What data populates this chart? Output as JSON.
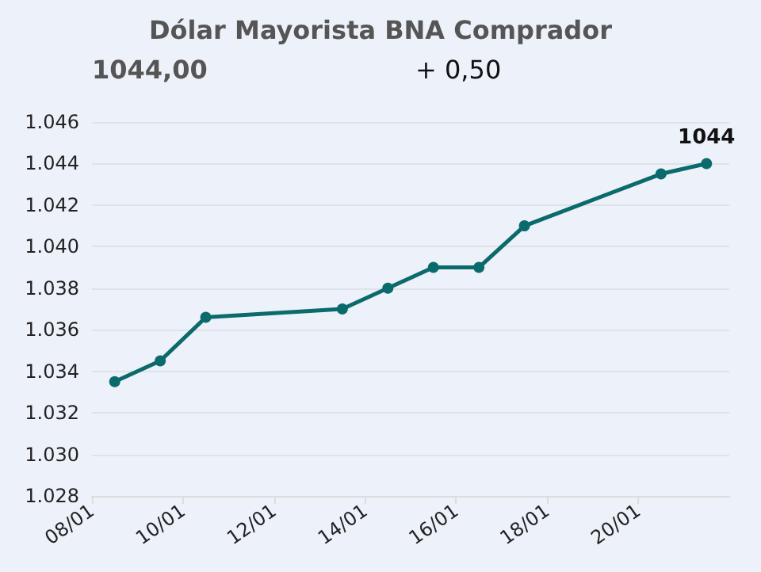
{
  "chart_data": {
    "type": "line",
    "title": "Dólar Mayorista BNA Comprador",
    "annotations": [
      "1044,00",
      "+ 0,50"
    ],
    "x": [
      "--01-08T12:00",
      "--01-09T12:00",
      "--01-10T12:00",
      "--01-13T12:00",
      "--01-14T12:00",
      "--01-15T12:00",
      "--01-16T12:00",
      "--01-17T12:00",
      "--01-20T12:00",
      "--01-21T12:00"
    ],
    "series": [
      {
        "color": "#0b6a6b",
        "values": [
          1033.5,
          1034.5,
          1036.6,
          1037,
          1038,
          1039,
          1039,
          1041,
          1043.5,
          1044
        ],
        "value_labels": [
          null,
          null,
          null,
          null,
          null,
          null,
          null,
          null,
          null,
          "1044"
        ]
      }
    ],
    "xlim": [
      "--01-08",
      "--01-22"
    ],
    "xticks": [
      {
        "value": "--01-08",
        "label": "08/01"
      },
      {
        "value": "--01-10",
        "label": "10/01"
      },
      {
        "value": "--01-12",
        "label": "12/01"
      },
      {
        "value": "--01-14",
        "label": "14/01"
      },
      {
        "value": "--01-16",
        "label": "16/01"
      },
      {
        "value": "--01-18",
        "label": "18/01"
      },
      {
        "value": "--01-20",
        "label": "20/01"
      }
    ],
    "ylim": [
      1028,
      1046
    ],
    "yticks": [
      {
        "value": 1028,
        "label": "1.028"
      },
      {
        "value": 1030,
        "label": "1.030"
      },
      {
        "value": 1032,
        "label": "1.032"
      },
      {
        "value": 1034,
        "label": "1.034"
      },
      {
        "value": 1036,
        "label": "1.036"
      },
      {
        "value": 1038,
        "label": "1.038"
      },
      {
        "value": 1040,
        "label": "1.040"
      },
      {
        "value": 1042,
        "label": "1.042"
      },
      {
        "value": 1044,
        "label": "1.044"
      },
      {
        "value": 1046,
        "label": "1.046"
      }
    ],
    "grid": "y",
    "marker": "circle",
    "line_style": "solid"
  }
}
